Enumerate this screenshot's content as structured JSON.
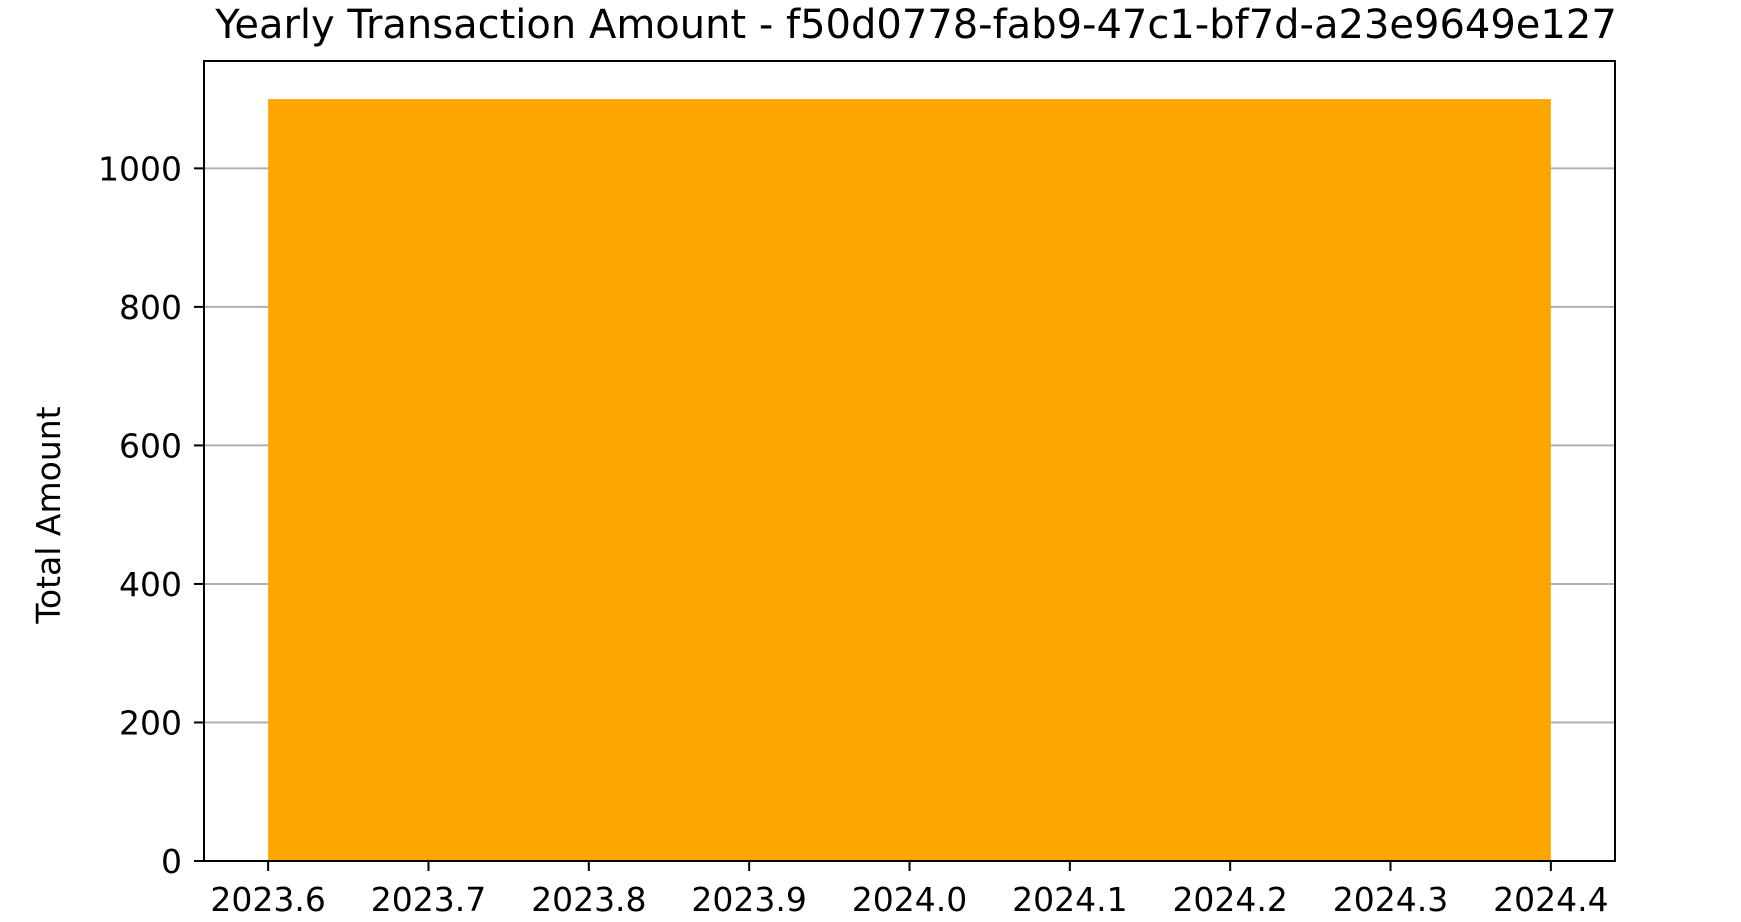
{
  "chart_data": {
    "type": "bar",
    "title": "Yearly Transaction Amount - f50d0778-fab9-47c1-bf7d-a23e9649e127",
    "xlabel": "",
    "ylabel": "Total Amount",
    "x": [
      2024
    ],
    "values": [
      1100
    ],
    "bar_width": 0.8,
    "xlim": [
      2023.56,
      2024.44
    ],
    "ylim": [
      0,
      1155
    ],
    "xticks": [
      "2023.6",
      "2023.7",
      "2023.8",
      "2023.9",
      "2024.0",
      "2024.1",
      "2024.2",
      "2024.3",
      "2024.4"
    ],
    "xtick_values": [
      2023.6,
      2023.7,
      2023.8,
      2023.9,
      2024.0,
      2024.1,
      2024.2,
      2024.3,
      2024.4
    ],
    "yticks": [
      "0",
      "200",
      "400",
      "600",
      "800",
      "1000"
    ],
    "ytick_values": [
      0,
      200,
      400,
      600,
      800,
      1000
    ],
    "grid": "y",
    "bar_color": "#FFA500",
    "grid_color": "#b0b0b0"
  }
}
